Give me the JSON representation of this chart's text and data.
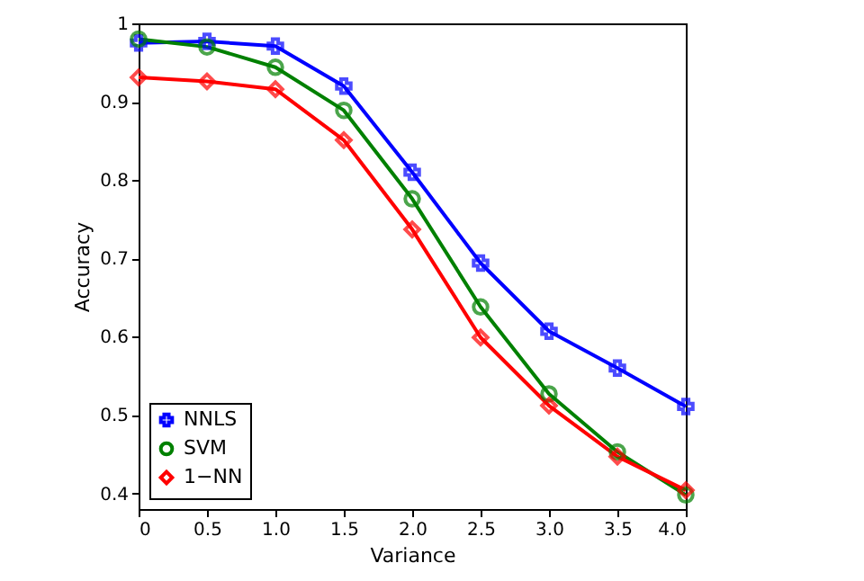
{
  "chart_data": {
    "type": "line",
    "xlabel": "Variance",
    "ylabel": "Accuracy",
    "x": [
      0,
      0.5,
      1.0,
      1.5,
      2.0,
      2.5,
      3.0,
      3.5,
      4.0
    ],
    "series": [
      {
        "name": "NNLS",
        "color": "#0000ff",
        "marker": "cross",
        "values": [
          0.975,
          0.977,
          0.971,
          0.92,
          0.81,
          0.694,
          0.607,
          0.56,
          0.511
        ]
      },
      {
        "name": "SVM",
        "color": "#008000",
        "marker": "circle",
        "values": [
          0.98,
          0.97,
          0.944,
          0.889,
          0.776,
          0.638,
          0.527,
          0.453,
          0.398
        ]
      },
      {
        "name": "1−NN",
        "color": "#ff0000",
        "marker": "diamond",
        "values": [
          0.931,
          0.926,
          0.916,
          0.851,
          0.737,
          0.599,
          0.512,
          0.447,
          0.404
        ]
      }
    ],
    "xlim": [
      0,
      4
    ],
    "ylim": [
      0.38,
      1
    ],
    "xticks": [
      0,
      0.5,
      {
        "value": 1,
        "label": "1.0"
      },
      1.5,
      {
        "value": 2,
        "label": "2.0"
      },
      2.5,
      {
        "value": 3,
        "label": "3.0"
      },
      3.5,
      {
        "value": 4,
        "label": "4.0"
      }
    ],
    "yticks": [
      0.4,
      0.5,
      0.6,
      0.7,
      0.8,
      0.9,
      1
    ],
    "grid": false,
    "legend": "bottom left",
    "line_style": "solid"
  }
}
